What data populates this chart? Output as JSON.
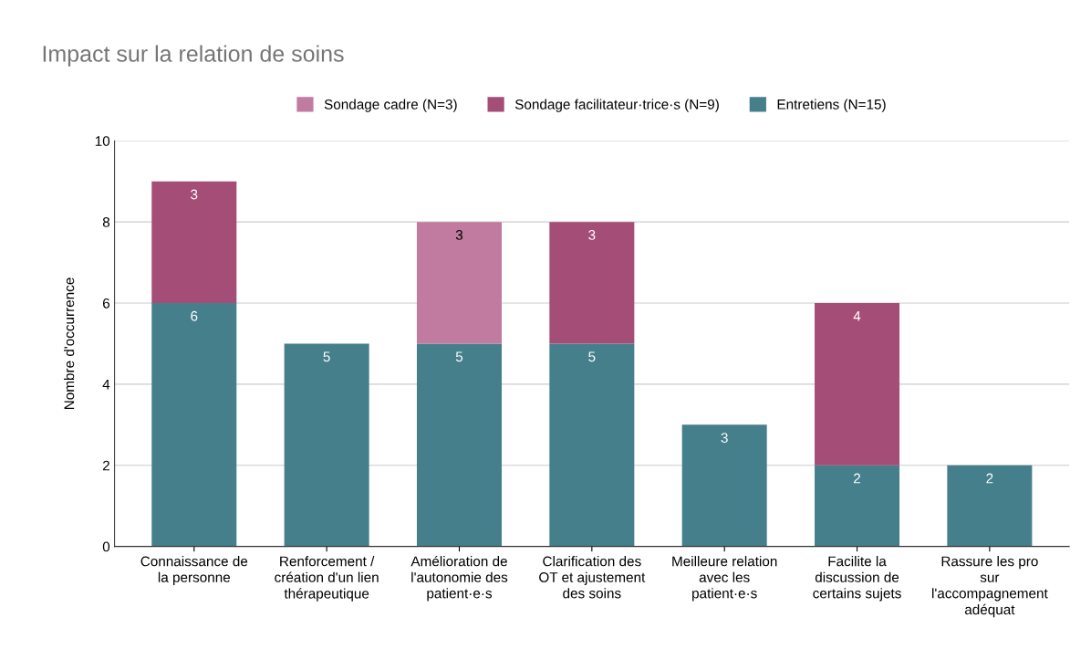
{
  "chart_data": {
    "type": "bar",
    "title": "Impact sur la relation de soins",
    "ylabel": "Nombre d'occurrence",
    "categories": [
      "Connaissance de la personne",
      "Renforcement / création d'un lien thérapeutique",
      "Amélioration de l'autonomie des patient·e·s",
      "Clarification des OT et ajustement des soins",
      "Meilleure relation avec les patient·e·s",
      "Facilite la discussion de certains sujets",
      "Rassure les pro sur l'accompagnement adéquat"
    ],
    "series": [
      {
        "name": "Entretiens (N=15)",
        "color": "#467f8c",
        "values": [
          6,
          5,
          5,
          5,
          3,
          2,
          2
        ]
      },
      {
        "name": "Sondage facilitateur·trice·s (N=9)",
        "color": "#a44d76",
        "values": [
          3,
          null,
          null,
          3,
          null,
          4,
          null
        ]
      },
      {
        "name": "Sondage cadre (N=3)",
        "color": "#c27ba0",
        "values": [
          null,
          null,
          3,
          null,
          null,
          null,
          null
        ]
      }
    ],
    "stacked": true,
    "data_labels": true,
    "ylim": [
      0,
      10
    ],
    "yticks": [
      0,
      2,
      4,
      6,
      8,
      10
    ],
    "grid": "y",
    "legend": "top"
  }
}
